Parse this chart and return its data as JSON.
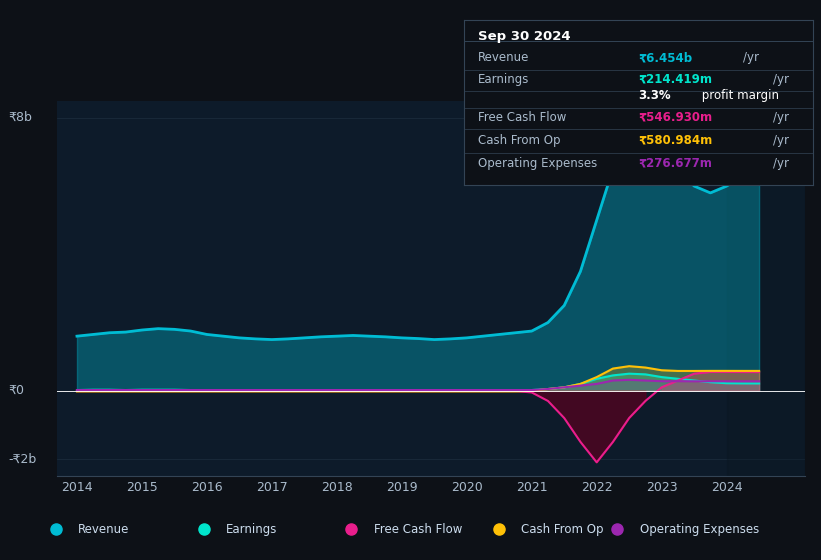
{
  "bg_color": "#0d1117",
  "plot_bg_color": "#0d1b2a",
  "title_box": {
    "date": "Sep 30 2024",
    "rows": [
      {
        "label": "Revenue",
        "value": "₹6.454b",
        "unit": "/yr",
        "value_color": "#00bcd4",
        "unit_color": "#aabbcc"
      },
      {
        "label": "Earnings",
        "value": "₹214.419m",
        "unit": "/yr",
        "value_color": "#00e5cc",
        "unit_color": "#aabbcc"
      },
      {
        "label": "",
        "value": "3.3%",
        "unit": " profit margin",
        "value_color": "#ffffff",
        "unit_color": "#ffffff"
      },
      {
        "label": "Free Cash Flow",
        "value": "₹546.930m",
        "unit": "/yr",
        "value_color": "#e91e8c",
        "unit_color": "#aabbcc"
      },
      {
        "label": "Cash From Op",
        "value": "₹580.984m",
        "unit": "/yr",
        "value_color": "#ffc107",
        "unit_color": "#aabbcc"
      },
      {
        "label": "Operating Expenses",
        "value": "₹276.677m",
        "unit": "/yr",
        "value_color": "#9c27b0",
        "unit_color": "#aabbcc"
      }
    ]
  },
  "years": [
    2014,
    2014.25,
    2014.5,
    2014.75,
    2015,
    2015.25,
    2015.5,
    2015.75,
    2016,
    2016.25,
    2016.5,
    2016.75,
    2017,
    2017.25,
    2017.5,
    2017.75,
    2018,
    2018.25,
    2018.5,
    2018.75,
    2019,
    2019.25,
    2019.5,
    2019.75,
    2020,
    2020.25,
    2020.5,
    2020.75,
    2021,
    2021.25,
    2021.5,
    2021.75,
    2022,
    2022.25,
    2022.5,
    2022.75,
    2023,
    2023.25,
    2023.5,
    2023.75,
    2024,
    2024.25,
    2024.5
  ],
  "revenue": [
    1.6,
    1.65,
    1.7,
    1.72,
    1.78,
    1.82,
    1.8,
    1.75,
    1.65,
    1.6,
    1.55,
    1.52,
    1.5,
    1.52,
    1.55,
    1.58,
    1.6,
    1.62,
    1.6,
    1.58,
    1.55,
    1.53,
    1.5,
    1.52,
    1.55,
    1.6,
    1.65,
    1.7,
    1.75,
    2.0,
    2.5,
    3.5,
    5.0,
    6.5,
    7.5,
    7.8,
    7.2,
    6.5,
    6.0,
    5.8,
    6.0,
    6.3,
    6.454
  ],
  "earnings": [
    0.02,
    0.03,
    0.03,
    0.02,
    0.03,
    0.03,
    0.03,
    0.02,
    0.02,
    0.02,
    0.02,
    0.02,
    0.02,
    0.02,
    0.02,
    0.02,
    0.02,
    0.02,
    0.02,
    0.02,
    0.02,
    0.02,
    0.02,
    0.02,
    0.02,
    0.02,
    0.02,
    0.02,
    0.02,
    0.05,
    0.1,
    0.2,
    0.35,
    0.45,
    0.5,
    0.48,
    0.4,
    0.35,
    0.3,
    0.25,
    0.22,
    0.215,
    0.214
  ],
  "free_cash_flow": [
    -0.01,
    -0.01,
    -0.01,
    -0.01,
    -0.01,
    -0.01,
    -0.01,
    -0.01,
    -0.01,
    -0.01,
    -0.01,
    -0.01,
    -0.01,
    -0.01,
    -0.01,
    -0.01,
    -0.01,
    -0.01,
    -0.01,
    -0.01,
    -0.01,
    -0.01,
    -0.01,
    -0.01,
    -0.01,
    -0.01,
    -0.01,
    -0.01,
    -0.05,
    -0.3,
    -0.8,
    -1.5,
    -2.1,
    -1.5,
    -0.8,
    -0.3,
    0.1,
    0.3,
    0.5,
    0.55,
    0.55,
    0.548,
    0.547
  ],
  "cash_from_op": [
    -0.02,
    -0.02,
    -0.02,
    -0.02,
    -0.02,
    -0.02,
    -0.02,
    -0.02,
    -0.02,
    -0.02,
    -0.02,
    -0.02,
    -0.02,
    -0.02,
    -0.02,
    -0.02,
    -0.02,
    -0.02,
    -0.02,
    -0.02,
    -0.02,
    -0.02,
    -0.02,
    -0.02,
    -0.02,
    -0.02,
    -0.02,
    -0.02,
    0.0,
    0.05,
    0.1,
    0.2,
    0.4,
    0.65,
    0.72,
    0.68,
    0.6,
    0.58,
    0.58,
    0.582,
    0.582,
    0.581,
    0.581
  ],
  "operating_expenses": [
    0.02,
    0.02,
    0.02,
    0.02,
    0.02,
    0.02,
    0.02,
    0.02,
    0.02,
    0.02,
    0.02,
    0.02,
    0.02,
    0.02,
    0.02,
    0.02,
    0.02,
    0.02,
    0.02,
    0.02,
    0.02,
    0.02,
    0.02,
    0.02,
    0.02,
    0.02,
    0.02,
    0.02,
    0.02,
    0.05,
    0.1,
    0.15,
    0.2,
    0.3,
    0.32,
    0.3,
    0.28,
    0.28,
    0.277,
    0.277,
    0.277,
    0.277,
    0.277
  ],
  "revenue_color": "#00bcd4",
  "earnings_color": "#00e5cc",
  "fcf_color": "#e91e8c",
  "cashop_color": "#ffc107",
  "opex_color": "#9c27b0",
  "ylim": [
    -2.5,
    8.5
  ],
  "ytick_values": [
    -2,
    0,
    8
  ],
  "ytick_labels": [
    "-₹2b",
    "₹0",
    "₹8b"
  ],
  "xlim": [
    2013.7,
    2025.2
  ],
  "xticks": [
    2014,
    2015,
    2016,
    2017,
    2018,
    2019,
    2020,
    2021,
    2022,
    2023,
    2024
  ],
  "forecast_start": 2024.0,
  "legend_items": [
    "Revenue",
    "Earnings",
    "Free Cash Flow",
    "Cash From Op",
    "Operating Expenses"
  ],
  "legend_colors": [
    "#00bcd4",
    "#00e5cc",
    "#e91e8c",
    "#ffc107",
    "#9c27b0"
  ]
}
